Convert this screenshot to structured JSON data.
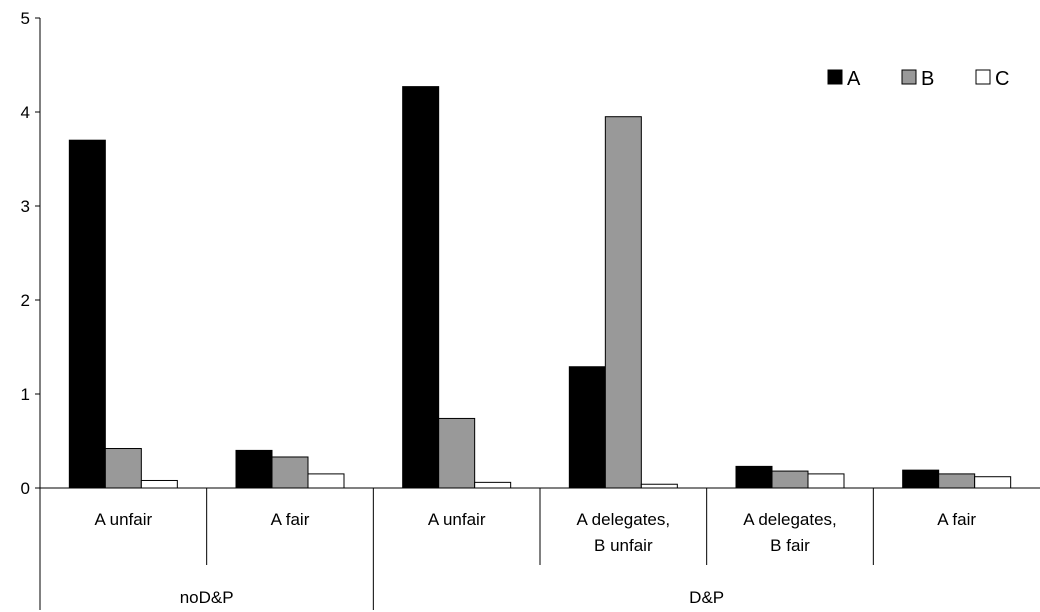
{
  "chart_data": {
    "type": "bar",
    "title": "",
    "xlabel": "",
    "ylabel": "",
    "ylim": [
      0,
      5
    ],
    "yticks": [
      "0",
      "1",
      "2",
      "3",
      "4",
      "5"
    ],
    "grid": false,
    "legend_position": "top-right",
    "groups": [
      {
        "label": "noD&P",
        "categories": [
          "A unfair",
          "A fair"
        ]
      },
      {
        "label": "D&P",
        "categories": [
          "A unfair",
          "A delegates,|B unfair",
          "A delegates,|B fair",
          "A fair"
        ]
      }
    ],
    "categories": [
      "A unfair",
      "A fair",
      "A unfair",
      "A delegates, B unfair",
      "A delegates, B fair",
      "A fair"
    ],
    "series": [
      {
        "name": "A",
        "color": "#000000",
        "values": [
          3.7,
          0.4,
          4.27,
          1.29,
          0.23,
          0.19
        ]
      },
      {
        "name": "B",
        "color": "#999999",
        "values": [
          0.42,
          0.33,
          0.74,
          3.95,
          0.18,
          0.15
        ]
      },
      {
        "name": "C",
        "color": "#ffffff",
        "values": [
          0.08,
          0.15,
          0.06,
          0.04,
          0.15,
          0.12
        ]
      }
    ]
  }
}
